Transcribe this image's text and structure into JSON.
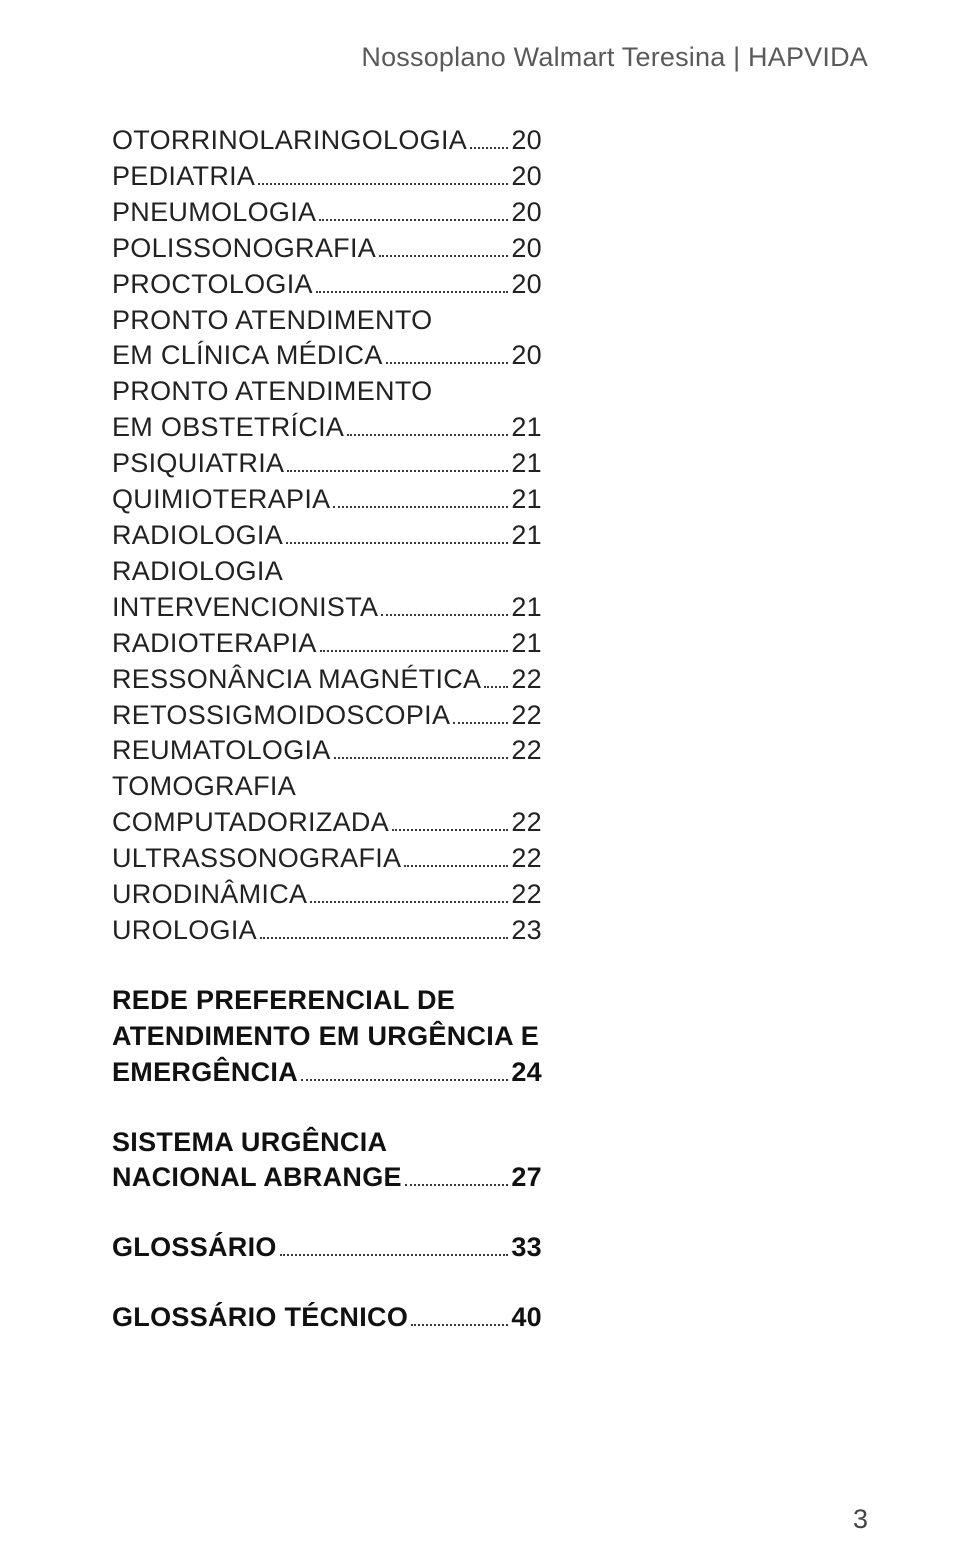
{
  "header": {
    "text": "Nossoplano Walmart Teresina | HAPVIDA"
  },
  "toc": {
    "items": [
      {
        "label": "OTORRINOLARINGOLOGIA",
        "page": "20"
      },
      {
        "label": "PEDIATRIA",
        "page": "20"
      },
      {
        "label": "PNEUMOLOGIA",
        "page": "20"
      },
      {
        "label": "POLISSONOGRAFIA",
        "page": "20"
      },
      {
        "label": "PROCTOLOGIA",
        "page": "20"
      },
      {
        "pre": "PRONTO ATENDIMENTO",
        "label": "EM CLÍNICA MÉDICA",
        "page": "20"
      },
      {
        "pre": "PRONTO  ATENDIMENTO",
        "label": "EM OBSTETRÍCIA",
        "page": "21"
      },
      {
        "label": "PSIQUIATRIA",
        "page": "21"
      },
      {
        "label": "QUIMIOTERAPIA",
        "page": "21"
      },
      {
        "label": "RADIOLOGIA",
        "page": "21"
      },
      {
        "pre": "RADIOLOGIA",
        "label": "INTERVENCIONISTA",
        "page": "21"
      },
      {
        "label": "RADIOTERAPIA",
        "page": "21"
      },
      {
        "label": "RESSONÂNCIA MAGNÉTICA",
        "page": "22"
      },
      {
        "label": "RETOSSIGMOIDOSCOPIA",
        "page": "22"
      },
      {
        "label": "REUMATOLOGIA",
        "page": "22"
      },
      {
        "pre": "TOMOGRAFIA",
        "label": "COMPUTADORIZADA",
        "page": "22"
      },
      {
        "label": "ULTRASSONOGRAFIA",
        "page": "22"
      },
      {
        "label": "URODINÂMICA",
        "page": "22"
      },
      {
        "label": "UROLOGIA",
        "page": "23"
      }
    ],
    "sections": [
      {
        "pre": [
          "REDE PREFERENCIAL DE",
          "ATENDIMENTO EM URGÊNCIA E"
        ],
        "label": "EMERGÊNCIA",
        "page": "24"
      },
      {
        "pre": [
          "SISTEMA URGÊNCIA"
        ],
        "label": "NACIONAL ABRANGE",
        "page": "27"
      },
      {
        "label": "GLOSSÁRIO",
        "page": "33"
      },
      {
        "label": "GLOSSÁRIO  TÉCNICO",
        "page": "40"
      }
    ]
  },
  "footer": {
    "page_number": "3"
  }
}
